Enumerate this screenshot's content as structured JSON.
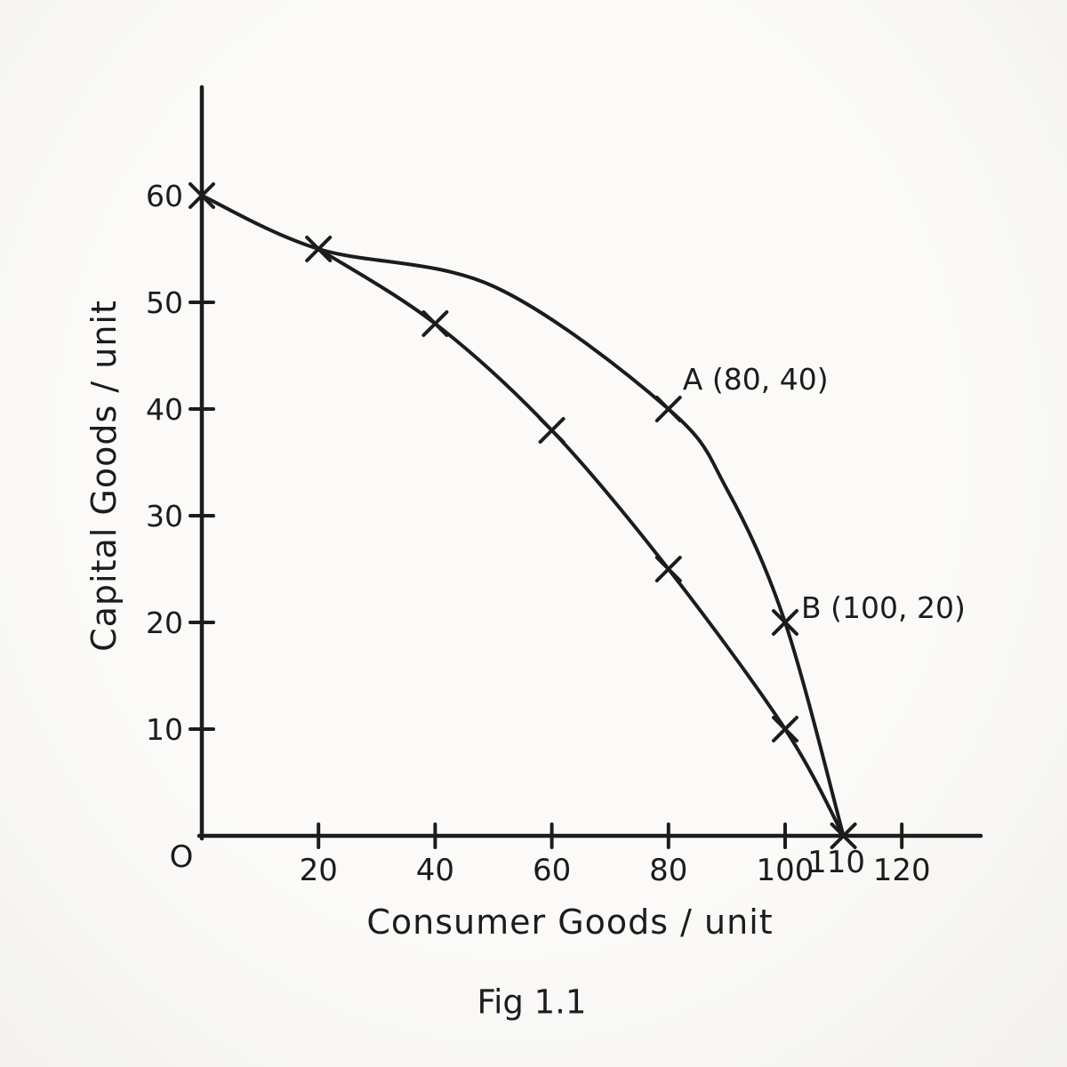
{
  "figure": {
    "ink_color": "#1c1c1c",
    "paper_color": "#f8f7f4"
  },
  "chart_data": {
    "type": "line",
    "title": "",
    "caption": "Fig 1.1",
    "xlabel": "Consumer Goods / unit",
    "ylabel": "Capital Goods / unit",
    "origin_label": "O",
    "xlim": [
      0,
      133
    ],
    "ylim": [
      0,
      70
    ],
    "grid": false,
    "legend": "none",
    "marker_glyph": "x",
    "x_axis": {
      "ticks": [
        {
          "value": 20,
          "label": "20",
          "mark": true,
          "raised": false
        },
        {
          "value": 40,
          "label": "40",
          "mark": true,
          "raised": false
        },
        {
          "value": 60,
          "label": "60",
          "mark": true,
          "raised": false
        },
        {
          "value": 80,
          "label": "80",
          "mark": true,
          "raised": false
        },
        {
          "value": 100,
          "label": "100",
          "mark": true,
          "raised": false
        },
        {
          "value": 110,
          "label": "110",
          "mark": false,
          "raised": true
        },
        {
          "value": 120,
          "label": "120",
          "mark": true,
          "raised": false
        }
      ]
    },
    "y_axis": {
      "ticks": [
        {
          "value": 10,
          "label": "10",
          "mark": true
        },
        {
          "value": 20,
          "label": "20",
          "mark": true
        },
        {
          "value": 30,
          "label": "30",
          "mark": true
        },
        {
          "value": 40,
          "label": "40",
          "mark": true
        },
        {
          "value": 50,
          "label": "50",
          "mark": true
        },
        {
          "value": 60,
          "label": "60",
          "mark": false
        }
      ]
    },
    "series": [
      {
        "name": "ppf-outer-curve",
        "points": [
          [
            0,
            60
          ],
          [
            20,
            55
          ],
          [
            50,
            51.5
          ],
          [
            80,
            40
          ],
          [
            90,
            32.5
          ],
          [
            100,
            20
          ],
          [
            110,
            0
          ]
        ],
        "marker_points": [
          [
            0,
            60
          ],
          [
            20,
            55
          ],
          [
            80,
            40
          ],
          [
            100,
            20
          ],
          [
            110,
            0
          ]
        ]
      },
      {
        "name": "ppf-inner-curve",
        "points": [
          [
            20,
            55
          ],
          [
            40,
            48
          ],
          [
            60,
            38
          ],
          [
            80,
            25
          ],
          [
            100,
            10
          ],
          [
            110,
            0
          ]
        ],
        "marker_points": [
          [
            40,
            48
          ],
          [
            60,
            38
          ],
          [
            80,
            25
          ],
          [
            100,
            10
          ]
        ]
      }
    ],
    "annotations": [
      {
        "id": "A",
        "label": "A (80, 40)",
        "x": 80,
        "y": 40
      },
      {
        "id": "B",
        "label": "B (100, 20)",
        "x": 100,
        "y": 20
      }
    ]
  }
}
